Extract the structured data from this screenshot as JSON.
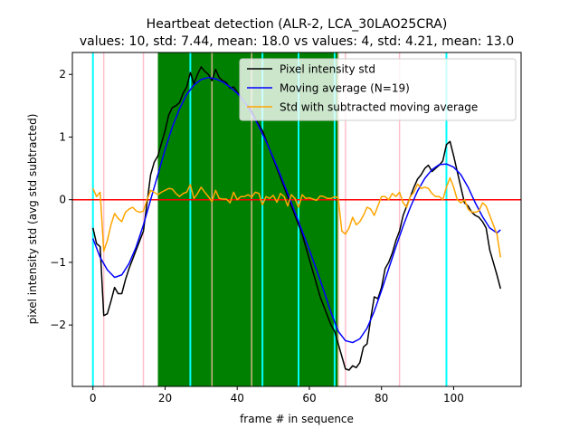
{
  "chart_data": {
    "type": "line",
    "title": "Heartbeat detection (ALR-2, LCA_30LAO25CRA)",
    "subtitle": "values: 10, std: 7.44, mean: 18.0 vs values: 4, std: 4.21, mean: 13.0",
    "xlabel": "frame # in sequence",
    "ylabel": "pixel intensity std (avg std subtracted)",
    "xlim": [
      -5.7,
      118.7
    ],
    "ylim": [
      -2.98,
      2.35
    ],
    "xticks": [
      0,
      20,
      40,
      60,
      80,
      100
    ],
    "yticks": [
      -2,
      -1,
      0,
      1,
      2
    ],
    "grid": false,
    "legend_position": "top-right",
    "colors": {
      "pixel_std": "#000000",
      "moving_avg": "#0000ff",
      "subtracted": "#ffa500",
      "zero_line": "#ff0000",
      "region": "#008000",
      "peak_lines": "#00ffff",
      "pink_lines": "#ffc0cb",
      "tan_lines": "#d2b48c"
    },
    "shaded_region": {
      "x0": 18,
      "x1": 68
    },
    "cyan_lines": [
      0,
      27,
      47,
      57,
      67,
      98
    ],
    "pink_lines": [
      3,
      14,
      70,
      85
    ],
    "tan_lines": [
      33,
      44,
      68
    ],
    "zero_line": 0,
    "series": [
      {
        "name": "Pixel intensity std",
        "x": [
          0,
          1,
          2,
          3,
          4,
          5,
          6,
          7,
          8,
          9,
          10,
          11,
          12,
          13,
          14,
          15,
          16,
          17,
          18,
          19,
          20,
          21,
          22,
          23,
          24,
          25,
          26,
          27,
          28,
          29,
          30,
          31,
          32,
          33,
          34,
          35,
          36,
          37,
          38,
          39,
          40,
          41,
          42,
          43,
          44,
          45,
          46,
          47,
          48,
          49,
          50,
          51,
          52,
          53,
          54,
          55,
          56,
          57,
          58,
          59,
          60,
          61,
          62,
          63,
          64,
          65,
          66,
          67,
          68,
          69,
          70,
          71,
          72,
          73,
          74,
          75,
          76,
          77,
          78,
          79,
          80,
          81,
          82,
          83,
          84,
          85,
          86,
          87,
          88,
          89,
          90,
          91,
          92,
          93,
          94,
          95,
          96,
          97,
          98,
          99,
          100,
          101,
          102,
          103,
          104,
          105,
          106,
          107,
          108,
          109,
          110,
          111,
          112,
          113
        ],
        "values": [
          -0.45,
          -0.7,
          -0.75,
          -1.85,
          -1.82,
          -1.62,
          -1.4,
          -1.5,
          -1.5,
          -1.28,
          -1.1,
          -0.95,
          -0.8,
          -0.65,
          -0.5,
          -0.05,
          0.4,
          0.6,
          0.7,
          0.9,
          1.1,
          1.35,
          1.47,
          1.5,
          1.55,
          1.7,
          1.8,
          2.03,
          1.85,
          2.0,
          2.12,
          2.05,
          2.0,
          1.9,
          2.08,
          1.95,
          1.9,
          1.87,
          1.78,
          1.8,
          1.72,
          1.65,
          1.55,
          1.5,
          1.42,
          1.3,
          1.2,
          1.1,
          0.95,
          0.8,
          0.65,
          0.5,
          0.35,
          0.2,
          0.05,
          -0.1,
          -0.25,
          -0.4,
          -0.55,
          -0.75,
          -0.95,
          -1.15,
          -1.35,
          -1.55,
          -1.7,
          -1.85,
          -2.0,
          -2.1,
          -2.3,
          -2.5,
          -2.7,
          -2.72,
          -2.65,
          -2.68,
          -2.6,
          -2.35,
          -2.3,
          -1.9,
          -1.55,
          -1.58,
          -1.4,
          -1.1,
          -1.0,
          -0.85,
          -0.65,
          -0.5,
          -0.25,
          -0.1,
          0.05,
          0.2,
          0.33,
          0.4,
          0.5,
          0.55,
          0.45,
          0.5,
          0.55,
          0.62,
          0.88,
          0.93,
          0.7,
          0.45,
          0.2,
          -0.05,
          -0.1,
          -0.2,
          -0.25,
          -0.28,
          -0.35,
          -0.45,
          -0.8,
          -1.0,
          -1.2,
          -1.42
        ]
      },
      {
        "name": "Moving average (N=19)",
        "x": [
          0,
          2,
          4,
          6,
          8,
          10,
          12,
          14,
          16,
          18,
          20,
          22,
          24,
          26,
          28,
          30,
          32,
          34,
          36,
          38,
          40,
          42,
          44,
          46,
          48,
          50,
          52,
          54,
          56,
          58,
          60,
          62,
          64,
          66,
          68,
          70,
          72,
          74,
          76,
          78,
          80,
          82,
          84,
          86,
          88,
          90,
          92,
          94,
          96,
          98,
          100,
          102,
          104,
          106,
          108,
          110,
          112,
          113
        ],
        "values": [
          -0.62,
          -0.92,
          -1.12,
          -1.24,
          -1.2,
          -1.02,
          -0.75,
          -0.4,
          0.0,
          0.4,
          0.8,
          1.16,
          1.45,
          1.68,
          1.83,
          1.92,
          1.95,
          1.93,
          1.88,
          1.8,
          1.7,
          1.56,
          1.38,
          1.17,
          0.93,
          0.67,
          0.39,
          0.1,
          -0.2,
          -0.5,
          -0.8,
          -1.12,
          -1.45,
          -1.8,
          -2.1,
          -2.25,
          -2.28,
          -2.22,
          -2.05,
          -1.78,
          -1.45,
          -1.1,
          -0.75,
          -0.42,
          -0.12,
          0.14,
          0.34,
          0.48,
          0.56,
          0.57,
          0.52,
          0.4,
          0.2,
          -0.05,
          -0.27,
          -0.45,
          -0.53,
          -0.48
        ]
      },
      {
        "name": "Std with subtracted moving average",
        "x": [
          0,
          1,
          2,
          3,
          4,
          5,
          6,
          7,
          8,
          9,
          10,
          11,
          12,
          13,
          14,
          15,
          16,
          17,
          18,
          19,
          20,
          21,
          22,
          23,
          24,
          25,
          26,
          27,
          28,
          29,
          30,
          31,
          32,
          33,
          34,
          35,
          36,
          37,
          38,
          39,
          40,
          41,
          42,
          43,
          44,
          45,
          46,
          47,
          48,
          49,
          50,
          51,
          52,
          53,
          54,
          55,
          56,
          57,
          58,
          59,
          60,
          61,
          62,
          63,
          64,
          65,
          66,
          67,
          68,
          69,
          70,
          71,
          72,
          73,
          74,
          75,
          76,
          77,
          78,
          79,
          80,
          81,
          82,
          83,
          84,
          85,
          86,
          87,
          88,
          89,
          90,
          91,
          92,
          93,
          94,
          95,
          96,
          97,
          98,
          99,
          100,
          101,
          102,
          103,
          104,
          105,
          106,
          107,
          108,
          109,
          110,
          111,
          112,
          113
        ],
        "values": [
          0.18,
          0.05,
          0.12,
          -0.82,
          -0.65,
          -0.4,
          -0.22,
          -0.3,
          -0.35,
          -0.2,
          -0.15,
          -0.12,
          -0.18,
          -0.2,
          -0.18,
          0.0,
          0.15,
          0.12,
          0.08,
          0.12,
          0.15,
          0.18,
          0.17,
          0.1,
          0.05,
          0.1,
          0.12,
          0.24,
          0.02,
          0.1,
          0.2,
          0.12,
          0.05,
          -0.03,
          0.15,
          0.02,
          0.01,
          0.01,
          -0.05,
          0.12,
          0.0,
          0.05,
          0.05,
          0.08,
          0.04,
          0.12,
          0.1,
          -0.08,
          0.05,
          0.02,
          0.07,
          -0.04,
          0.1,
          0.05,
          -0.1,
          0.08,
          0.02,
          -0.12,
          0.08,
          0.02,
          0.03,
          0.01,
          -0.01,
          0.06,
          0.05,
          0.02,
          0.02,
          0.05,
          0.03,
          -0.5,
          -0.55,
          -0.45,
          -0.28,
          -0.4,
          -0.35,
          -0.25,
          -0.12,
          -0.15,
          -0.25,
          -0.1,
          0.05,
          0.05,
          0.0,
          0.1,
          0.05,
          0.12,
          -0.05,
          -0.12,
          0.05,
          0.12,
          0.25,
          0.18,
          0.2,
          0.18,
          0.1,
          0.05,
          0.05,
          0.0,
          0.2,
          0.35,
          0.2,
          0.0,
          -0.05,
          0.0,
          -0.15,
          -0.2,
          -0.2,
          -0.18,
          -0.05,
          -0.1,
          -0.25,
          -0.4,
          -0.55,
          -0.92
        ]
      }
    ]
  }
}
